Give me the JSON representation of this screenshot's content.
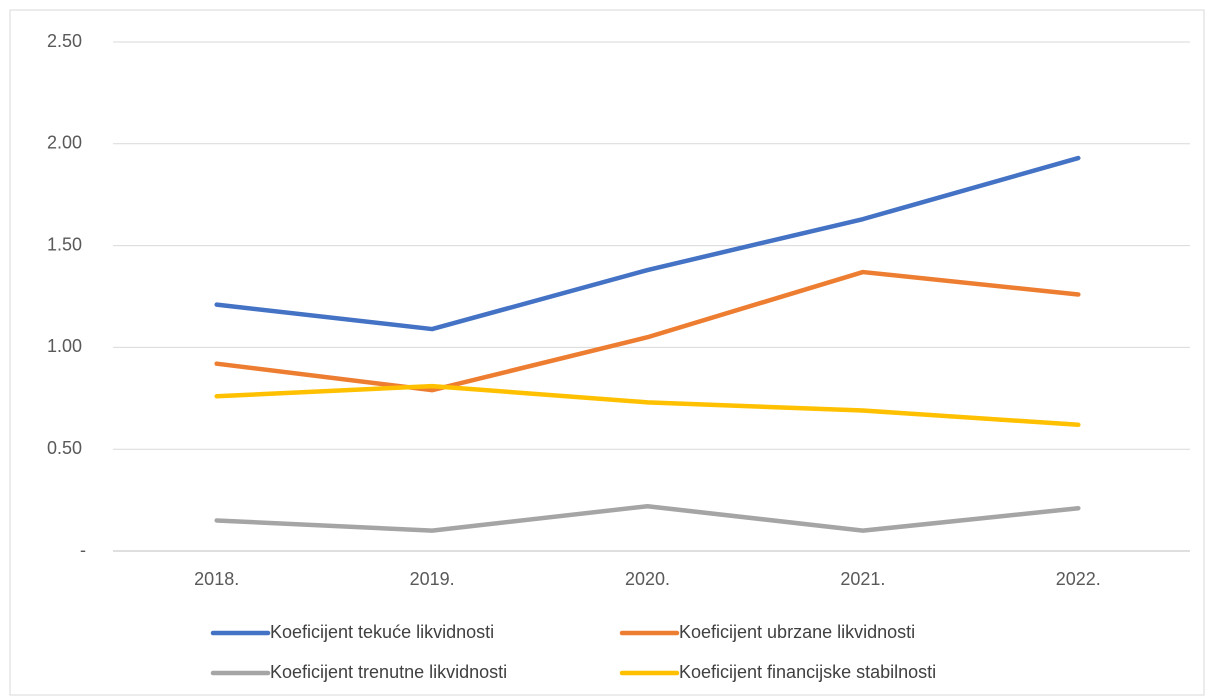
{
  "chart_data": {
    "type": "line",
    "categories": [
      "2018.",
      "2019.",
      "2020.",
      "2021.",
      "2022."
    ],
    "series": [
      {
        "name": "Koeficijent tekuće likvidnosti",
        "color": "#4472c4",
        "values": [
          1.21,
          1.09,
          1.38,
          1.63,
          1.93
        ]
      },
      {
        "name": "Koeficijent ubrzane likvidnosti",
        "color": "#ed7d31",
        "values": [
          0.92,
          0.79,
          1.05,
          1.37,
          1.26
        ]
      },
      {
        "name": "Koeficijent trenutne likvidnosti",
        "color": "#a5a5a5",
        "values": [
          0.15,
          0.1,
          0.22,
          0.1,
          0.21
        ]
      },
      {
        "name": "Koeficijent financijske stabilnosti",
        "color": "#ffc000",
        "values": [
          0.76,
          0.81,
          0.73,
          0.69,
          0.62
        ]
      }
    ],
    "ylim": [
      0,
      2.5
    ],
    "yticks": [
      {
        "value": 0,
        "label": "-"
      },
      {
        "value": 0.5,
        "label": "0.50"
      },
      {
        "value": 1,
        "label": "1.00"
      },
      {
        "value": 1.5,
        "label": "1.50"
      },
      {
        "value": 2,
        "label": "2.00"
      },
      {
        "value": 2.5,
        "label": "2.50"
      }
    ],
    "grid": true,
    "legend": "bottom"
  }
}
